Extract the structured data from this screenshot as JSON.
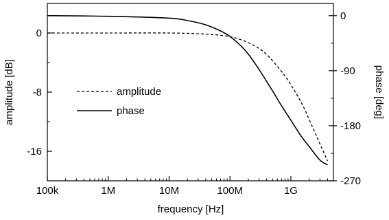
{
  "chart_data": {
    "type": "line",
    "xlabel": "frequency [Hz]",
    "ylabel_left": "amplitude [dB]",
    "ylabel_right": "phase [deg]",
    "x_scale": "log",
    "xlim": [
      100000,
      5000000000
    ],
    "ylim_left": [
      -20,
      4
    ],
    "ylim_right": [
      -270,
      20
    ],
    "x_ticks": [
      {
        "value": 100000,
        "label": "100k"
      },
      {
        "value": 1000000,
        "label": "1M"
      },
      {
        "value": 10000000,
        "label": "10M"
      },
      {
        "value": 100000000,
        "label": "100M"
      },
      {
        "value": 1000000000,
        "label": "1G"
      }
    ],
    "y_left_ticks": [
      {
        "value": 0,
        "label": "0"
      },
      {
        "value": -8,
        "label": "-8"
      },
      {
        "value": -16,
        "label": "-16"
      }
    ],
    "y_right_ticks": [
      {
        "value": 0,
        "label": "0"
      },
      {
        "value": -90,
        "label": "-90"
      },
      {
        "value": -180,
        "label": "-180"
      },
      {
        "value": -270,
        "label": "-270"
      }
    ],
    "grid": false,
    "legend_placement": "center-left",
    "series": [
      {
        "name": "amplitude",
        "axis": "left",
        "style": "dashed",
        "x": [
          100000,
          1000000,
          10000000,
          30000000,
          60000000,
          100000000,
          150000000,
          250000000,
          400000000,
          700000000,
          1000000000,
          1500000000,
          2000000000,
          3000000000,
          4000000000
        ],
        "y": [
          0,
          0,
          0,
          -0.1,
          -0.25,
          -0.5,
          -0.9,
          -1.7,
          -2.9,
          -5.2,
          -7.0,
          -9.5,
          -11.7,
          -15.0,
          -17.3
        ]
      },
      {
        "name": "phase",
        "axis": "right",
        "style": "solid",
        "x": [
          100000,
          1000000,
          10000000,
          20000000,
          40000000,
          70000000,
          100000000,
          150000000,
          200000000,
          300000000,
          500000000,
          700000000,
          1000000000,
          1500000000,
          2000000000,
          3000000000,
          4000000000
        ],
        "y": [
          0,
          -1,
          -4,
          -8,
          -15,
          -25,
          -34,
          -49,
          -63,
          -88,
          -123,
          -147,
          -171,
          -198,
          -214,
          -236,
          -244
        ]
      }
    ]
  }
}
